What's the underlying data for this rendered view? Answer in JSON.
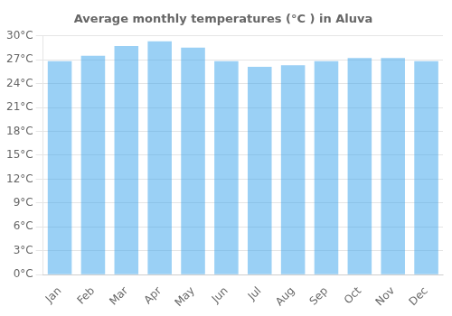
{
  "chart_data": {
    "type": "bar",
    "title": "Average monthly temperatures (°C ) in Aluva",
    "categories": [
      "Jan",
      "Feb",
      "Mar",
      "Apr",
      "May",
      "Jun",
      "Jul",
      "Aug",
      "Sep",
      "Oct",
      "Nov",
      "Dec"
    ],
    "values": [
      26.8,
      27.5,
      28.7,
      29.3,
      28.5,
      26.8,
      26.1,
      26.3,
      26.8,
      27.2,
      27.2,
      26.8
    ],
    "ylim": [
      0,
      30
    ],
    "yticks": [
      {
        "value": 0,
        "label": "0°C"
      },
      {
        "value": 3,
        "label": "3°C"
      },
      {
        "value": 6,
        "label": "6°C"
      },
      {
        "value": 9,
        "label": "9°C"
      },
      {
        "value": 12,
        "label": "12°C"
      },
      {
        "value": 15,
        "label": "15°C"
      },
      {
        "value": 18,
        "label": "18°C"
      },
      {
        "value": 21,
        "label": "21°C"
      },
      {
        "value": 24,
        "label": "24°C"
      },
      {
        "value": 27,
        "label": "27°C"
      },
      {
        "value": 30,
        "label": "30°C"
      }
    ],
    "grid": true
  }
}
